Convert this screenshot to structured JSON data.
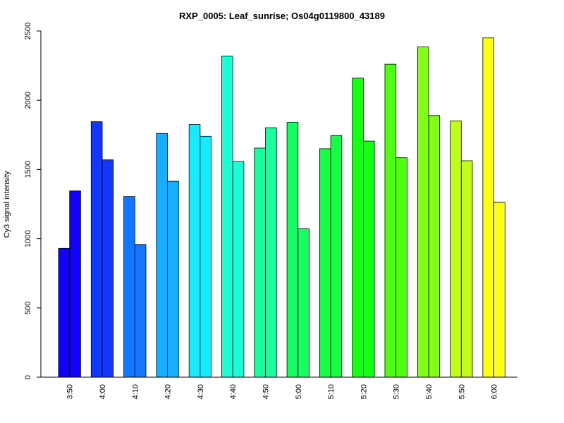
{
  "chart_data": {
    "type": "bar",
    "title": "RXP_0005: Leaf_sunrise; Os04g0119800_43189",
    "xlabel": "",
    "ylabel": "Cy3 signal intensity",
    "ylim": [
      0,
      2500
    ],
    "yticks": [
      0,
      500,
      1000,
      1500,
      2000,
      2500
    ],
    "grid": false,
    "categories": [
      "3:50",
      "4:00",
      "4:10",
      "4:20",
      "4:30",
      "4:40",
      "4:50",
      "5:00",
      "5:10",
      "5:20",
      "5:30",
      "5:40",
      "5:50",
      "6:00"
    ],
    "series": [
      {
        "values": [
          930,
          1845,
          1305,
          1760,
          1825,
          2320,
          1655,
          1840,
          1650,
          2160,
          2260,
          2385,
          1850,
          2450
        ]
      },
      {
        "values": [
          1345,
          1570,
          958,
          1415,
          1740,
          1558,
          1802,
          1072,
          1745,
          1705,
          1585,
          1890,
          1563,
          1262
        ]
      }
    ],
    "colors": [
      "#0f00ff",
      "#1038ff",
      "#1277ff",
      "#14b0ff",
      "#16ecff",
      "#19ffd8",
      "#17ff9f",
      "#15ff63",
      "#15ff46",
      "#16ff14",
      "#4eff14",
      "#82ff14",
      "#c0ff17",
      "#ffff12"
    ]
  }
}
